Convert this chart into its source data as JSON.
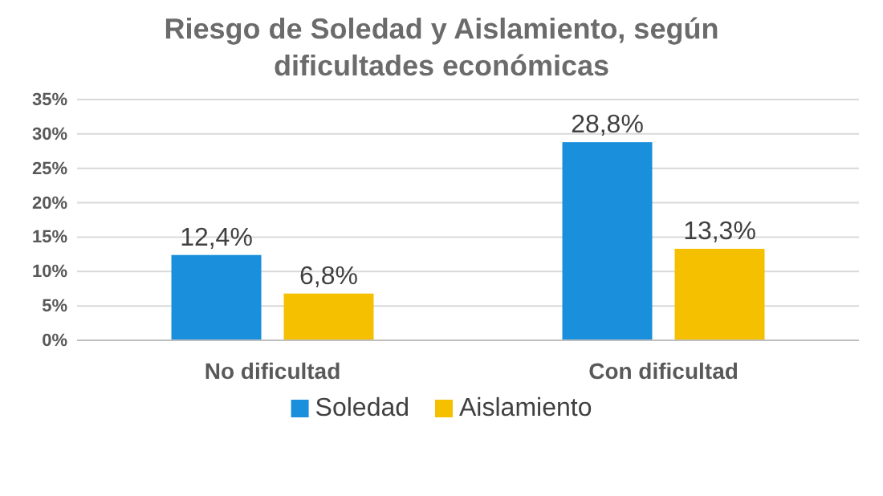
{
  "chart_data": {
    "type": "bar",
    "title": "Riesgo de Soledad y Aislamiento, según dificultades económicas",
    "categories": [
      "No dificultad",
      "Con dificultad"
    ],
    "series": [
      {
        "name": "Soledad",
        "color": "#1a8fdc",
        "values": [
          12.4,
          28.8
        ],
        "value_labels": [
          "12,4%",
          "28,8%"
        ]
      },
      {
        "name": "Aislamiento",
        "color": "#f5c000",
        "values": [
          6.8,
          13.3
        ],
        "value_labels": [
          "6,8%",
          "13,3%"
        ]
      }
    ],
    "ylim": [
      0,
      35
    ],
    "yticks": [
      {
        "value": 0,
        "label": "0%"
      },
      {
        "value": 5,
        "label": "5%"
      },
      {
        "value": 10,
        "label": "10%"
      },
      {
        "value": 15,
        "label": "15%"
      },
      {
        "value": 20,
        "label": "20%"
      },
      {
        "value": 25,
        "label": "25%"
      },
      {
        "value": 30,
        "label": "30%"
      },
      {
        "value": 35,
        "label": "35%"
      }
    ],
    "grid": "y",
    "legend": "bottom"
  }
}
